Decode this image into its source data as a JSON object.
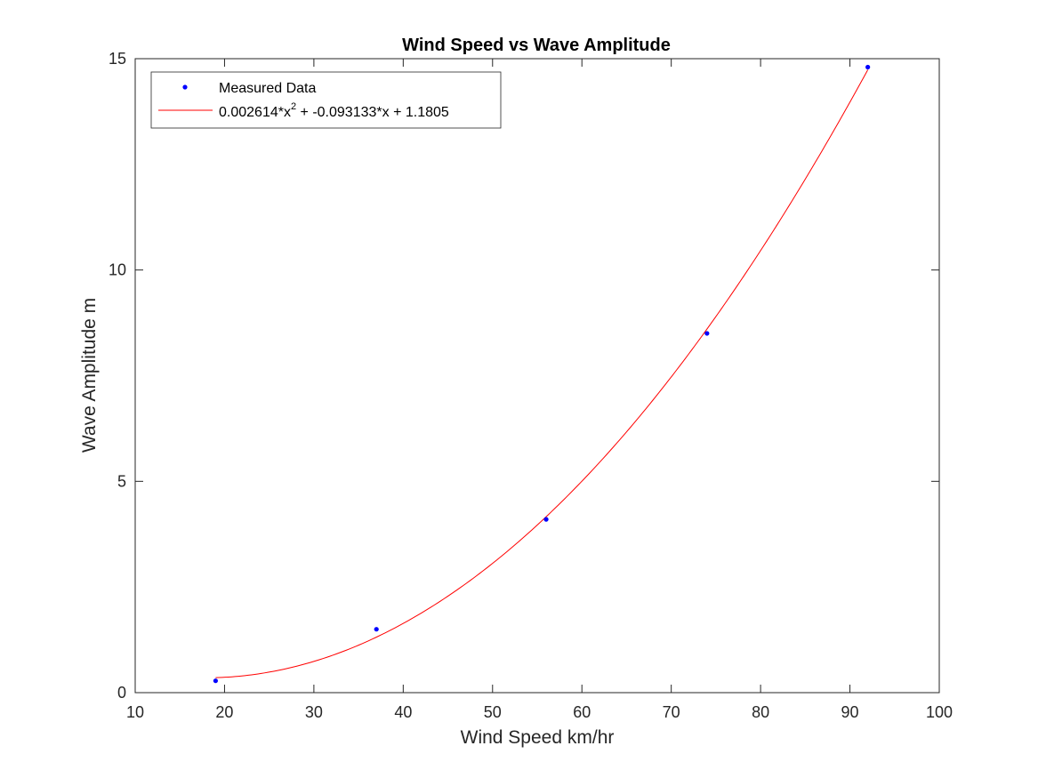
{
  "chart_data": {
    "type": "scatter",
    "title": "Wind Speed vs Wave Amplitude",
    "xlabel": "Wind Speed km/hr",
    "ylabel": "Wave Amplitude m",
    "xlim": [
      10,
      100
    ],
    "ylim": [
      0,
      15
    ],
    "xticks": [
      10,
      20,
      30,
      40,
      50,
      60,
      70,
      80,
      90,
      100
    ],
    "yticks": [
      0,
      5,
      10,
      15
    ],
    "grid": false,
    "legend_position": "top-left",
    "series": [
      {
        "name": "Measured Data",
        "kind": "scatter",
        "color": "#0000ff",
        "x": [
          19,
          37,
          56,
          74,
          92
        ],
        "y": [
          0.28,
          1.5,
          4.1,
          8.5,
          14.8
        ]
      },
      {
        "name": "0.002614*x^2 + -0.093133*x + 1.1805",
        "kind": "line",
        "color": "#ff0000",
        "coefficients": [
          0.002614,
          -0.093133,
          1.1805
        ],
        "x_range": [
          19,
          92
        ]
      }
    ],
    "legend": {
      "scatter_label": "Measured Data",
      "fit_label_pre": "0.002614*x",
      "fit_label_sup": "2",
      "fit_label_post": " + -0.093133*x + 1.1805"
    }
  }
}
